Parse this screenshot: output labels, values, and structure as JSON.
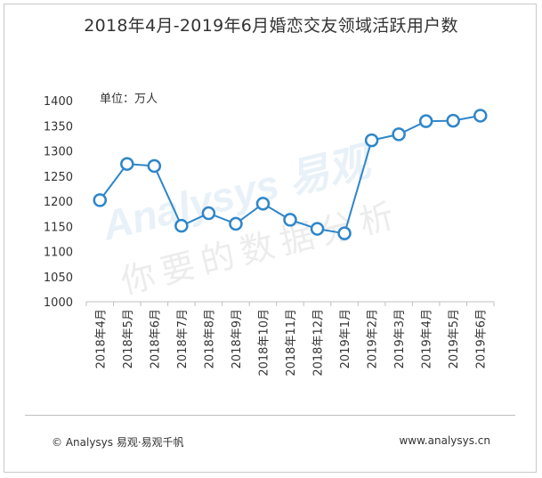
{
  "title": "2018年4月-2019年6月婚恋交友领域活跃用户数",
  "unit_label": "单位：万人",
  "footer": {
    "copyright": "© Analysys 易观·易观千帆",
    "url": "www.analysys.cn"
  },
  "watermark": {
    "line1": "Analysys 易观",
    "line2": "你要的数据分析"
  },
  "colors": {
    "line": "#2e86c9",
    "marker_fill": "#ffffff",
    "axis": "#bfbfbf",
    "text": "#333333"
  },
  "chart_data": {
    "type": "line",
    "title": "2018年4月-2019年6月婚恋交友领域活跃用户数",
    "ylabel": "单位：万人",
    "xlabel": "",
    "ylim": [
      1000,
      1400
    ],
    "yticks": [
      1000,
      1050,
      1100,
      1150,
      1200,
      1250,
      1300,
      1350,
      1400
    ],
    "grid": false,
    "categories": [
      "2018年4月",
      "2018年5月",
      "2018年6月",
      "2018年7月",
      "2018年8月",
      "2018年9月",
      "2018年10月",
      "2018年11月",
      "2018年12月",
      "2019年1月",
      "2019年2月",
      "2019年3月",
      "2019年4月",
      "2019年5月",
      "2019年6月"
    ],
    "values": [
      1202,
      1274,
      1270,
      1151,
      1176,
      1155,
      1195,
      1163,
      1145,
      1136,
      1321,
      1333,
      1359,
      1360,
      1370
    ]
  }
}
